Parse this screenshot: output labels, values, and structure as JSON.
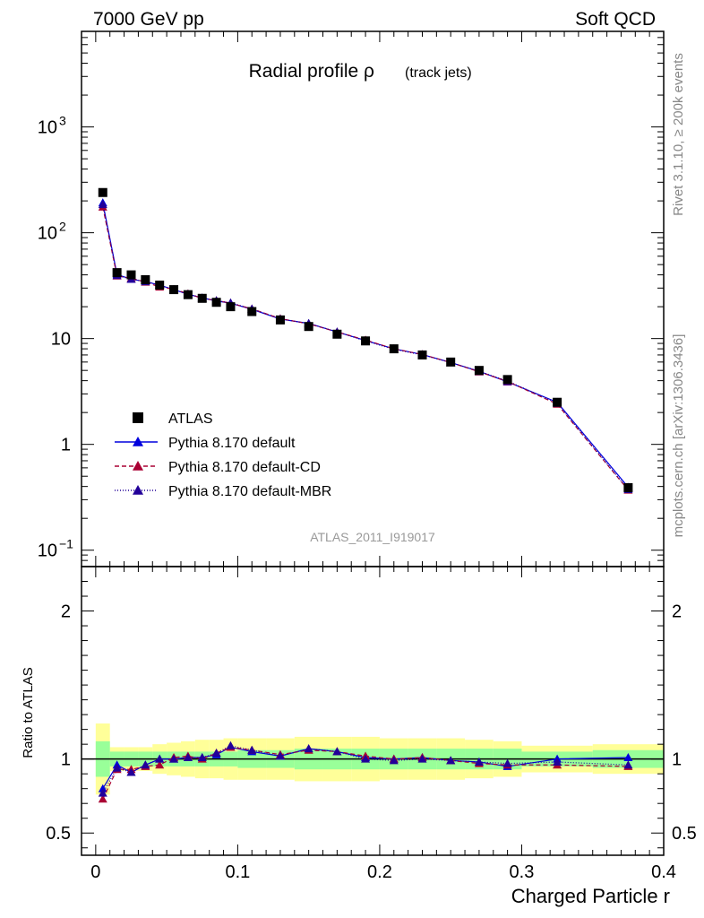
{
  "header": {
    "left": "7000 GeV pp",
    "right": "Soft QCD"
  },
  "side_labels": {
    "rivet": "Rivet 3.1.10, ≥ 200k events",
    "mcplots": "mcplots.cern.ch [arXiv:1306.3436]"
  },
  "chart_data": {
    "type": "scatter",
    "title_main": "Radial profile ρ",
    "title_sub": "(track jets)",
    "analysis_id": "ATLAS_2011_I919017",
    "xlabel": "Charged Particle r",
    "ratio_ylabel": "Ratio to ATLAS",
    "xlim": [
      -0.01,
      0.4
    ],
    "ylim_main": [
      0.07,
      8000
    ],
    "yscale_main": "log",
    "ylim_ratio": [
      0.35,
      2.3
    ],
    "x_ticks": [
      "0",
      "0.1",
      "0.2",
      "0.3",
      "0.4"
    ],
    "y_ticks_main": [
      {
        "base": "10",
        "exp": "3"
      },
      {
        "base": "10",
        "exp": "2"
      },
      {
        "base": "10",
        "exp": ""
      },
      {
        "base": "1",
        "exp": ""
      },
      {
        "base": "10",
        "exp": "−1"
      }
    ],
    "y_ticks_ratio": [
      "2",
      "1",
      "0.5"
    ],
    "legend": {
      "position": "bottom-left",
      "entries": [
        {
          "label": "ATLAS",
          "color": "#000000",
          "style": "marker-square"
        },
        {
          "label": "Pythia 8.170 default",
          "color": "#0000dd",
          "style": "solid"
        },
        {
          "label": "Pythia 8.170 default-CD",
          "color": "#aa0033",
          "style": "dashed"
        },
        {
          "label": "Pythia 8.170 default-MBR",
          "color": "#220099",
          "style": "dotted"
        }
      ]
    },
    "x": [
      0.005,
      0.015,
      0.025,
      0.035,
      0.045,
      0.055,
      0.065,
      0.075,
      0.085,
      0.095,
      0.11,
      0.13,
      0.15,
      0.17,
      0.19,
      0.21,
      0.23,
      0.25,
      0.27,
      0.29,
      0.325,
      0.375
    ],
    "x_bin_edges": [
      0.0,
      0.01,
      0.02,
      0.03,
      0.04,
      0.05,
      0.06,
      0.07,
      0.08,
      0.09,
      0.1,
      0.12,
      0.14,
      0.16,
      0.18,
      0.2,
      0.22,
      0.24,
      0.26,
      0.28,
      0.3,
      0.35,
      0.4
    ],
    "data": {
      "name": "ATLAS",
      "values": [
        240,
        42,
        40,
        36,
        32,
        29,
        26,
        24,
        22,
        20,
        18,
        15,
        13,
        11,
        9.5,
        8.0,
        7.0,
        6.0,
        5.0,
        4.1,
        2.5,
        0.39
      ],
      "band_stat": [
        0.12,
        0.05,
        0.05,
        0.05,
        0.05,
        0.05,
        0.05,
        0.05,
        0.05,
        0.05,
        0.06,
        0.06,
        0.07,
        0.07,
        0.07,
        0.07,
        0.07,
        0.07,
        0.07,
        0.07,
        0.05,
        0.06
      ],
      "band_total": [
        0.24,
        0.08,
        0.08,
        0.08,
        0.1,
        0.11,
        0.12,
        0.13,
        0.13,
        0.14,
        0.14,
        0.14,
        0.15,
        0.15,
        0.15,
        0.14,
        0.14,
        0.14,
        0.13,
        0.12,
        0.09,
        0.1
      ]
    },
    "series": [
      {
        "name": "Pythia 8.170 default",
        "color": "#0000dd",
        "dash": "",
        "ratio": [
          0.8,
          0.96,
          0.91,
          0.96,
          1.0,
          1.0,
          1.01,
          1.01,
          1.03,
          1.08,
          1.05,
          1.02,
          1.07,
          1.05,
          1.01,
          1.0,
          1.01,
          0.99,
          0.98,
          0.95,
          1.0,
          1.01
        ]
      },
      {
        "name": "Pythia 8.170 default-CD",
        "color": "#aa0033",
        "dash": "5,3",
        "ratio": [
          0.73,
          0.93,
          0.93,
          0.95,
          0.96,
          1.01,
          1.02,
          1.0,
          1.04,
          1.08,
          1.06,
          1.03,
          1.06,
          1.05,
          1.02,
          1.0,
          1.01,
          0.99,
          0.97,
          0.96,
          0.96,
          0.95
        ]
      },
      {
        "name": "Pythia 8.170 default-MBR",
        "color": "#220099",
        "dash": "1,2",
        "ratio": [
          0.77,
          0.94,
          0.91,
          0.96,
          1.0,
          1.0,
          1.01,
          1.01,
          1.04,
          1.09,
          1.06,
          1.02,
          1.07,
          1.05,
          1.0,
          0.99,
          1.0,
          0.99,
          0.98,
          0.97,
          0.98,
          0.96
        ]
      }
    ]
  }
}
